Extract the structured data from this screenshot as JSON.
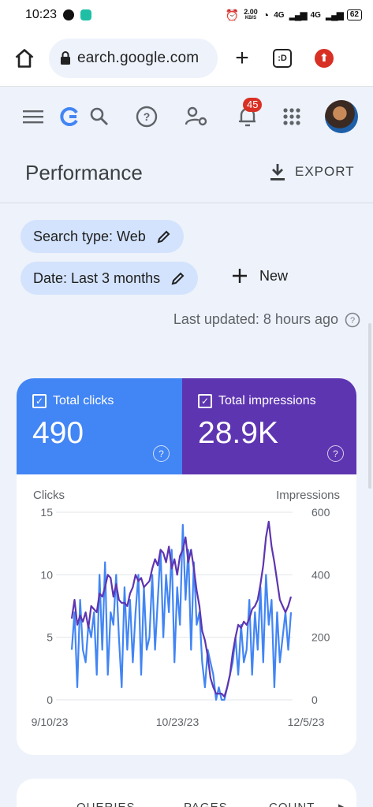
{
  "status_bar": {
    "time": "10:23",
    "speed": "2.00",
    "speed_unit": "KB/S",
    "net1": "4G",
    "net2": "4G",
    "battery": "62"
  },
  "browser": {
    "url": "earch.google.com",
    "tabs_label": ":D"
  },
  "toolbar": {
    "notifications_count": "45"
  },
  "page": {
    "title": "Performance",
    "export_label": "EXPORT"
  },
  "filters": {
    "search_type": "Search type: Web",
    "date": "Date: Last 3 months",
    "new_label": "New",
    "last_updated": "Last updated: 8 hours ago"
  },
  "metrics": {
    "clicks_label": "Total clicks",
    "clicks_value": "490",
    "impressions_label": "Total impressions",
    "impressions_value": "28.9K",
    "clicks_color": "#4285f4",
    "impressions_color": "#5e35b1"
  },
  "chart_data": {
    "type": "line",
    "ylabel_left": "Clicks",
    "ylabel_right": "Impressions",
    "yticks_left": [
      "15",
      "10",
      "5",
      "0"
    ],
    "yticks_right": [
      "600",
      "400",
      "200",
      "0"
    ],
    "ylim_left": [
      0,
      15
    ],
    "ylim_right": [
      0,
      600
    ],
    "xtick_labels": [
      "9/10/23",
      "10/23/23",
      "12/5/23"
    ],
    "grid": true,
    "series": [
      {
        "name": "Clicks",
        "color": "#4285f4",
        "axis": "left",
        "values": [
          4,
          7,
          1,
          8,
          4,
          3,
          6,
          5,
          7,
          2,
          10,
          4,
          11,
          2,
          7,
          6,
          10,
          5,
          1,
          9,
          4,
          8,
          3,
          7,
          10,
          2,
          9,
          4,
          5,
          10,
          4,
          8,
          12,
          5,
          10,
          7,
          12,
          3,
          9,
          6,
          14,
          8,
          12,
          4,
          11,
          6,
          7,
          3,
          1,
          4,
          3,
          2,
          0,
          1,
          0,
          0,
          1,
          2,
          3,
          5,
          2,
          6,
          3,
          4,
          8,
          2,
          7,
          4,
          9,
          3,
          10,
          6,
          8,
          1,
          7,
          3,
          5,
          7,
          4,
          7
        ]
      },
      {
        "name": "Impressions",
        "color": "#5e35b1",
        "axis": "right",
        "values": [
          260,
          320,
          240,
          270,
          250,
          280,
          230,
          300,
          290,
          280,
          340,
          330,
          360,
          400,
          390,
          330,
          370,
          320,
          310,
          310,
          300,
          340,
          360,
          400,
          380,
          390,
          360,
          370,
          380,
          420,
          450,
          430,
          480,
          470,
          440,
          490,
          420,
          450,
          400,
          460,
          480,
          520,
          440,
          480,
          420,
          350,
          300,
          220,
          190,
          140,
          70,
          40,
          20,
          20,
          20,
          10,
          40,
          80,
          150,
          200,
          240,
          230,
          250,
          240,
          260,
          290,
          300,
          320,
          370,
          430,
          520,
          570,
          490,
          440,
          380,
          320,
          300,
          280,
          300,
          330
        ]
      }
    ]
  },
  "bottom_tabs": {
    "queries": "QUERIES",
    "pages": "PAGES",
    "countries": "COUNT"
  }
}
